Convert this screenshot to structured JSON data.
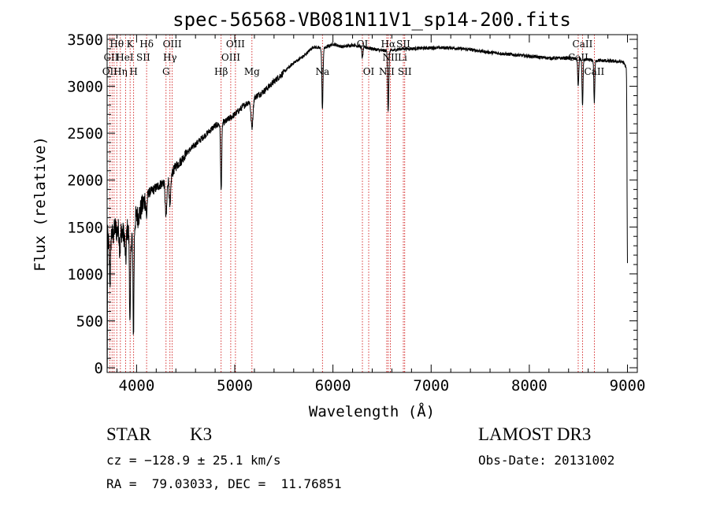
{
  "chart_data": {
    "type": "line",
    "title": "spec-56568-VB081N11V1_sp14-200.fits",
    "xlabel": "Wavelength (Å)",
    "ylabel": "Flux (relative)",
    "xlim": [
      3700,
      9100
    ],
    "ylim": [
      -50,
      3550
    ],
    "xticks": [
      4000,
      5000,
      6000,
      7000,
      8000,
      9000
    ],
    "yticks": [
      0,
      500,
      1000,
      1500,
      2000,
      2500,
      3000,
      3500
    ],
    "line_color": "#000000",
    "marker_color": "#cc0000",
    "continuum": [
      [
        3700,
        0
      ],
      [
        3705,
        1400
      ],
      [
        3720,
        1300
      ],
      [
        3740,
        1450
      ],
      [
        3760,
        1400
      ],
      [
        3780,
        1500
      ],
      [
        3800,
        1450
      ],
      [
        3830,
        1500
      ],
      [
        3860,
        1430
      ],
      [
        3880,
        1400
      ],
      [
        3900,
        1500
      ],
      [
        3930,
        1380
      ],
      [
        3950,
        1400
      ],
      [
        3970,
        1420
      ],
      [
        3990,
        1600
      ],
      [
        4020,
        1620
      ],
      [
        4050,
        1700
      ],
      [
        4080,
        1780
      ],
      [
        4100,
        1850
      ],
      [
        4150,
        1880
      ],
      [
        4200,
        1920
      ],
      [
        4250,
        1960
      ],
      [
        4300,
        2000
      ],
      [
        4350,
        2050
      ],
      [
        4400,
        2150
      ],
      [
        4450,
        2200
      ],
      [
        4500,
        2280
      ],
      [
        4600,
        2380
      ],
      [
        4700,
        2480
      ],
      [
        4800,
        2580
      ],
      [
        4850,
        2600
      ],
      [
        4900,
        2620
      ],
      [
        5000,
        2700
      ],
      [
        5100,
        2800
      ],
      [
        5200,
        2880
      ],
      [
        5300,
        2950
      ],
      [
        5400,
        3050
      ],
      [
        5500,
        3150
      ],
      [
        5600,
        3250
      ],
      [
        5700,
        3320
      ],
      [
        5800,
        3420
      ],
      [
        5900,
        3400
      ],
      [
        6000,
        3450
      ],
      [
        6100,
        3420
      ],
      [
        6200,
        3440
      ],
      [
        6300,
        3420
      ],
      [
        6400,
        3400
      ],
      [
        6500,
        3380
      ],
      [
        6600,
        3380
      ],
      [
        6700,
        3400
      ],
      [
        6800,
        3400
      ],
      [
        7000,
        3410
      ],
      [
        7200,
        3410
      ],
      [
        7400,
        3390
      ],
      [
        7600,
        3360
      ],
      [
        7800,
        3340
      ],
      [
        8000,
        3320
      ],
      [
        8200,
        3300
      ],
      [
        8400,
        3300
      ],
      [
        8600,
        3280
      ],
      [
        8800,
        3270
      ],
      [
        8950,
        3260
      ],
      [
        8990,
        3200
      ],
      [
        9000,
        2900
      ]
    ],
    "absorption_features": [
      {
        "wavelength": 3730,
        "width": 8,
        "depth": 450
      },
      {
        "wavelength": 3830,
        "width": 8,
        "depth": 250
      },
      {
        "wavelength": 3890,
        "width": 8,
        "depth": 300
      },
      {
        "wavelength": 3933,
        "width": 7,
        "depth": 950
      },
      {
        "wavelength": 3968,
        "width": 7,
        "depth": 1050
      },
      {
        "wavelength": 4101,
        "width": 8,
        "depth": 250
      },
      {
        "wavelength": 4300,
        "width": 12,
        "depth": 400
      },
      {
        "wavelength": 4340,
        "width": 10,
        "depth": 350
      },
      {
        "wavelength": 4861,
        "width": 8,
        "depth": 720
      },
      {
        "wavelength": 5175,
        "width": 14,
        "depth": 300
      },
      {
        "wavelength": 5893,
        "width": 8,
        "depth": 650
      },
      {
        "wavelength": 6300,
        "width": 8,
        "depth": 120
      },
      {
        "wavelength": 6563,
        "width": 8,
        "depth": 650
      },
      {
        "wavelength": 8498,
        "width": 7,
        "depth": 300
      },
      {
        "wavelength": 8542,
        "width": 7,
        "depth": 500
      },
      {
        "wavelength": 8662,
        "width": 7,
        "depth": 450
      },
      {
        "wavelength": 9000,
        "width": 6,
        "depth": 1800
      }
    ],
    "line_markers": [
      3727,
      3750,
      3771,
      3798,
      3835,
      3889,
      3934,
      3970,
      4102,
      4300,
      4340,
      4363,
      4861,
      4959,
      5007,
      5175,
      5893,
      6300,
      6364,
      6548,
      6563,
      6584,
      6717,
      6731,
      8498,
      8542,
      8662
    ],
    "line_labels": [
      {
        "text": "Hθ",
        "x": 3798,
        "row": 1
      },
      {
        "text": "K",
        "x": 3934,
        "row": 1
      },
      {
        "text": "Hδ",
        "x": 4102,
        "row": 1
      },
      {
        "text": "OIII",
        "x": 4363,
        "row": 1
      },
      {
        "text": "OIII",
        "x": 5007,
        "row": 1
      },
      {
        "text": "OI",
        "x": 6300,
        "row": 1
      },
      {
        "text": "Hα",
        "x": 6563,
        "row": 1
      },
      {
        "text": "SII",
        "x": 6717,
        "row": 1
      },
      {
        "text": "CaII",
        "x": 8542,
        "row": 1
      },
      {
        "text": "CII",
        "x": 3740,
        "row": 2
      },
      {
        "text": "HeI",
        "x": 3880,
        "row": 2
      },
      {
        "text": "SII",
        "x": 4068,
        "row": 2
      },
      {
        "text": "Hγ",
        "x": 4340,
        "row": 2
      },
      {
        "text": "OIII",
        "x": 4959,
        "row": 2
      },
      {
        "text": "NII",
        "x": 6584,
        "row": 2
      },
      {
        "text": "Li",
        "x": 6708,
        "row": 2
      },
      {
        "text": "CaII",
        "x": 8498,
        "row": 2
      },
      {
        "text": "OII",
        "x": 3727,
        "row": 3
      },
      {
        "text": "Hη",
        "x": 3835,
        "row": 3
      },
      {
        "text": "H",
        "x": 3970,
        "row": 3
      },
      {
        "text": "G",
        "x": 4300,
        "row": 3
      },
      {
        "text": "Hβ",
        "x": 4861,
        "row": 3
      },
      {
        "text": "Mg",
        "x": 5175,
        "row": 3
      },
      {
        "text": "Na",
        "x": 5893,
        "row": 3
      },
      {
        "text": "OI",
        "x": 6364,
        "row": 3
      },
      {
        "text": "NII",
        "x": 6548,
        "row": 3
      },
      {
        "text": "SII",
        "x": 6731,
        "row": 3
      },
      {
        "text": "CaII",
        "x": 8662,
        "row": 3
      }
    ]
  },
  "info": {
    "object_class": "STAR",
    "subclass": "K3",
    "survey": "LAMOST DR3",
    "redshift_line": "cz = −128.9 ± 25.1 km/s",
    "obs_date_line": "Obs-Date: 20131002",
    "coords_line": "RA =  79.03033, DEC =  11.76851"
  }
}
